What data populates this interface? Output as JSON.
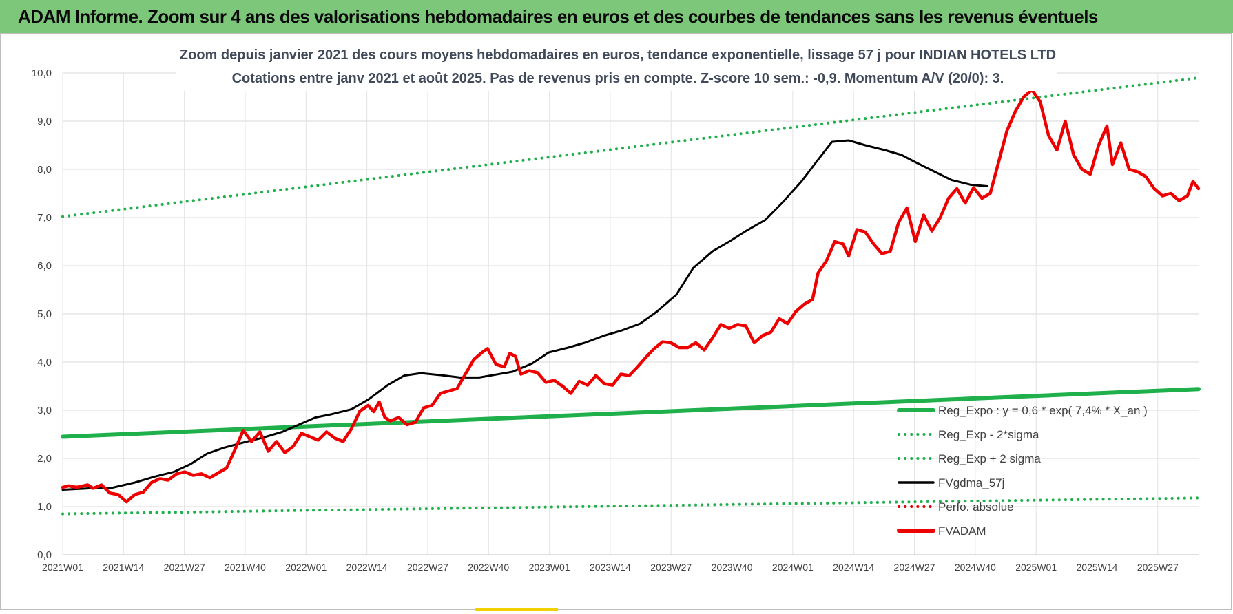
{
  "banner": {
    "title": "ADAM Informe. Zoom sur 4 ans des valorisations hebdomadaires en euros et des courbes de tendances sans les revenus éventuels"
  },
  "chart_data": {
    "type": "line",
    "title_line1": "Zoom depuis janvier 2021 des cours moyens hebdomadaires en euros, tendance exponentielle, lissage 57 j pour INDIAN HOTELS LTD",
    "title_line2": "Cotations entre janv 2021 et août 2025.  Pas de revenus pris en compte. Z-score 10 sem.: -0,9. Momentum A/V (20/0): 3.",
    "ylim": [
      0,
      10
    ],
    "yticks": [
      "0,0",
      "1,0",
      "2,0",
      "3,0",
      "4,0",
      "5,0",
      "6,0",
      "7,0",
      "8,0",
      "9,0",
      "10,0"
    ],
    "grid": true,
    "legend_position": "bottom-right",
    "x_ticks": [
      "2021W01",
      "2021W14",
      "2021W27",
      "2021W40",
      "2022W01",
      "2022W14",
      "2022W27",
      "2022W40",
      "2023W01",
      "2023W14",
      "2023W27",
      "2023W40",
      "2024W01",
      "2024W14",
      "2024W27",
      "2024W40",
      "2025W01",
      "2025W14",
      "2025W27"
    ],
    "x_index_range": [
      0,
      241
    ],
    "series": [
      {
        "name": "Reg_Expo : y = 0,6 * exp( 7,4% *  X_an )",
        "color": "#1fb04c",
        "style": "solid",
        "points": [
          [
            0,
            2.45
          ],
          [
            241,
            3.44
          ]
        ]
      },
      {
        "name": "Reg_Exp - 2*sigma",
        "color": "#1fb04c",
        "style": "dotted",
        "points": [
          [
            0,
            0.85
          ],
          [
            241,
            1.18
          ]
        ]
      },
      {
        "name": "Reg_Exp + 2 sigma",
        "color": "#1fb04c",
        "style": "dotted",
        "points": [
          [
            0,
            7.02
          ],
          [
            241,
            9.9
          ]
        ]
      },
      {
        "name": "FVgdma_57j",
        "color": "#000000",
        "style": "solid",
        "points": [
          [
            0,
            1.35
          ],
          [
            10,
            1.38
          ],
          [
            17,
            1.38
          ],
          [
            26,
            1.5
          ],
          [
            33,
            1.62
          ],
          [
            40,
            1.72
          ],
          [
            46,
            1.88
          ],
          [
            52,
            2.1
          ],
          [
            58,
            2.22
          ],
          [
            65,
            2.33
          ],
          [
            72,
            2.43
          ],
          [
            79,
            2.55
          ],
          [
            85,
            2.7
          ],
          [
            91,
            2.85
          ],
          [
            97,
            2.92
          ],
          [
            104,
            3.02
          ],
          [
            110,
            3.22
          ],
          [
            117,
            3.52
          ],
          [
            123,
            3.72
          ],
          [
            129,
            3.77
          ],
          [
            136,
            3.73
          ],
          [
            143,
            3.68
          ],
          [
            150,
            3.68
          ],
          [
            156,
            3.74
          ],
          [
            162,
            3.8
          ],
          [
            169,
            3.97
          ],
          [
            175,
            4.2
          ],
          [
            182,
            4.3
          ],
          [
            188,
            4.4
          ],
          [
            195,
            4.55
          ],
          [
            201,
            4.65
          ],
          [
            208,
            4.8
          ],
          [
            214,
            5.05
          ],
          [
            221,
            5.4
          ],
          [
            227,
            5.95
          ],
          [
            234,
            6.3
          ],
          [
            240,
            6.5
          ],
          [
            246,
            6.72
          ],
          [
            253,
            6.95
          ],
          [
            259,
            7.3
          ],
          [
            266,
            7.75
          ],
          [
            272,
            8.2
          ],
          [
            277,
            8.57
          ],
          [
            283,
            8.6
          ],
          [
            289,
            8.5
          ],
          [
            296,
            8.4
          ],
          [
            302,
            8.3
          ],
          [
            307,
            8.15
          ],
          [
            314,
            7.95
          ],
          [
            320,
            7.78
          ],
          [
            327,
            7.68
          ],
          [
            333,
            7.65
          ]
        ]
      },
      {
        "name": "Perfo. absolue",
        "color": "#e00000",
        "style": "dotted",
        "points": []
      },
      {
        "name": "FVADAM",
        "color": "#ee0000",
        "style": "solid",
        "points": [
          [
            0,
            1.4
          ],
          [
            2,
            1.43
          ],
          [
            5,
            1.4
          ],
          [
            9,
            1.45
          ],
          [
            11,
            1.38
          ],
          [
            14,
            1.45
          ],
          [
            17,
            1.28
          ],
          [
            20,
            1.25
          ],
          [
            23,
            1.1
          ],
          [
            26,
            1.25
          ],
          [
            29,
            1.3
          ],
          [
            32,
            1.5
          ],
          [
            35,
            1.58
          ],
          [
            38,
            1.55
          ],
          [
            41,
            1.68
          ],
          [
            44,
            1.72
          ],
          [
            47,
            1.65
          ],
          [
            50,
            1.68
          ],
          [
            53,
            1.6
          ],
          [
            56,
            1.7
          ],
          [
            59,
            1.8
          ],
          [
            62,
            2.18
          ],
          [
            65,
            2.58
          ],
          [
            68,
            2.35
          ],
          [
            71,
            2.55
          ],
          [
            74,
            2.15
          ],
          [
            77,
            2.35
          ],
          [
            80,
            2.12
          ],
          [
            83,
            2.25
          ],
          [
            86,
            2.52
          ],
          [
            89,
            2.45
          ],
          [
            92,
            2.38
          ],
          [
            95,
            2.55
          ],
          [
            98,
            2.42
          ],
          [
            101,
            2.35
          ],
          [
            104,
            2.62
          ],
          [
            107,
            2.98
          ],
          [
            110,
            3.1
          ],
          [
            112,
            2.97
          ],
          [
            114,
            3.17
          ],
          [
            116,
            2.85
          ],
          [
            118,
            2.78
          ],
          [
            121,
            2.85
          ],
          [
            124,
            2.7
          ],
          [
            127,
            2.75
          ],
          [
            130,
            3.05
          ],
          [
            133,
            3.1
          ],
          [
            136,
            3.35
          ],
          [
            139,
            3.4
          ],
          [
            142,
            3.45
          ],
          [
            145,
            3.75
          ],
          [
            148,
            4.05
          ],
          [
            151,
            4.2
          ],
          [
            153,
            4.28
          ],
          [
            156,
            3.95
          ],
          [
            159,
            3.9
          ],
          [
            161,
            4.18
          ],
          [
            163,
            4.12
          ],
          [
            165,
            3.75
          ],
          [
            168,
            3.82
          ],
          [
            171,
            3.78
          ],
          [
            174,
            3.58
          ],
          [
            177,
            3.62
          ],
          [
            180,
            3.5
          ],
          [
            183,
            3.35
          ],
          [
            186,
            3.6
          ],
          [
            189,
            3.52
          ],
          [
            192,
            3.72
          ],
          [
            195,
            3.55
          ],
          [
            198,
            3.52
          ],
          [
            201,
            3.75
          ],
          [
            204,
            3.72
          ],
          [
            207,
            3.9
          ],
          [
            210,
            4.1
          ],
          [
            213,
            4.28
          ],
          [
            216,
            4.42
          ],
          [
            219,
            4.4
          ],
          [
            222,
            4.3
          ],
          [
            225,
            4.3
          ],
          [
            228,
            4.4
          ],
          [
            231,
            4.25
          ],
          [
            234,
            4.5
          ],
          [
            237,
            4.78
          ],
          [
            240,
            4.7
          ],
          [
            243,
            4.78
          ],
          [
            246,
            4.75
          ],
          [
            249,
            4.4
          ],
          [
            252,
            4.55
          ],
          [
            255,
            4.62
          ],
          [
            258,
            4.9
          ],
          [
            261,
            4.8
          ],
          [
            264,
            5.05
          ],
          [
            267,
            5.2
          ],
          [
            270,
            5.3
          ],
          [
            272,
            5.85
          ],
          [
            275,
            6.1
          ],
          [
            278,
            6.5
          ],
          [
            281,
            6.45
          ],
          [
            283,
            6.2
          ],
          [
            286,
            6.75
          ],
          [
            289,
            6.7
          ],
          [
            292,
            6.45
          ],
          [
            295,
            6.25
          ],
          [
            298,
            6.3
          ],
          [
            301,
            6.9
          ],
          [
            304,
            7.2
          ],
          [
            307,
            6.5
          ],
          [
            310,
            7.05
          ],
          [
            313,
            6.72
          ],
          [
            316,
            7.0
          ],
          [
            319,
            7.4
          ],
          [
            322,
            7.6
          ],
          [
            325,
            7.3
          ],
          [
            328,
            7.62
          ],
          [
            331,
            7.4
          ],
          [
            334,
            7.5
          ],
          [
            337,
            8.15
          ],
          [
            340,
            8.8
          ],
          [
            343,
            9.2
          ],
          [
            346,
            9.5
          ],
          [
            349,
            9.65
          ],
          [
            352,
            9.4
          ],
          [
            355,
            8.7
          ],
          [
            358,
            8.4
          ],
          [
            361,
            9.0
          ],
          [
            364,
            8.3
          ],
          [
            367,
            8.0
          ],
          [
            370,
            7.9
          ],
          [
            373,
            8.5
          ],
          [
            376,
            8.9
          ],
          [
            378,
            8.1
          ],
          [
            381,
            8.55
          ],
          [
            384,
            8.0
          ],
          [
            387,
            7.95
          ],
          [
            390,
            7.85
          ],
          [
            393,
            7.6
          ],
          [
            396,
            7.45
          ],
          [
            399,
            7.5
          ],
          [
            402,
            7.35
          ],
          [
            405,
            7.45
          ],
          [
            407,
            7.75
          ],
          [
            409,
            7.6
          ]
        ]
      }
    ]
  }
}
